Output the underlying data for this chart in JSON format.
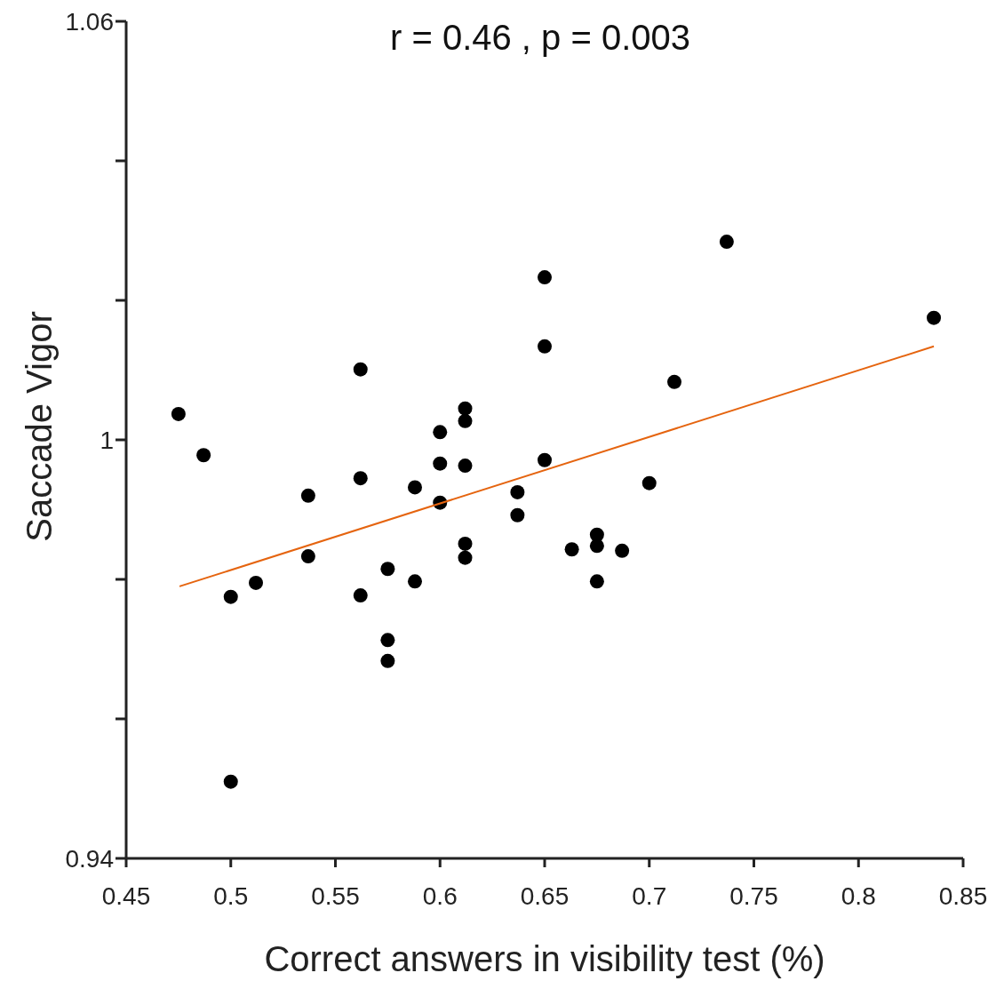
{
  "chart_data": {
    "type": "scatter",
    "title": "r = 0.46 , p = 0.003",
    "xlabel": "Correct answers in visibility test (%)",
    "ylabel": "Saccade Vigor",
    "xlim": [
      0.45,
      0.85
    ],
    "xticks": [
      0.45,
      0.5,
      0.55,
      0.6,
      0.65,
      0.7,
      0.75,
      0.8,
      0.85
    ],
    "ylim": [
      0.94,
      1.06
    ],
    "yticks": [
      0.94,
      {
        "value": 0.96,
        "label": null
      },
      {
        "value": 0.98,
        "label": null
      },
      1,
      {
        "value": 1.02,
        "label": null
      },
      {
        "value": 1.04,
        "label": null
      },
      1.06
    ],
    "marker": "circle",
    "series": [
      {
        "color": "#000000",
        "x": [
          0.475,
          0.487,
          0.5,
          0.5,
          0.512,
          0.537,
          0.537,
          0.562,
          0.562,
          0.562,
          0.575,
          0.575,
          0.575,
          0.588,
          0.588,
          0.6,
          0.6,
          0.6,
          0.612,
          0.612,
          0.612,
          0.612,
          0.612,
          0.637,
          0.637,
          0.65,
          0.65,
          0.65,
          0.663,
          0.675,
          0.675,
          0.675,
          0.687,
          0.7,
          0.712,
          0.737,
          0.836
        ],
        "values": [
          1.0037,
          0.9978,
          0.9775,
          0.951,
          0.9795,
          0.992,
          0.9833,
          1.0101,
          0.9945,
          0.9777,
          0.9815,
          0.9713,
          0.9683,
          0.9932,
          0.9797,
          1.0011,
          0.9966,
          0.991,
          1.0045,
          1.0027,
          0.9963,
          0.9851,
          0.9831,
          0.9925,
          0.9892,
          1.0233,
          1.0134,
          0.9971,
          0.9843,
          0.9864,
          0.9848,
          0.9797,
          0.9841,
          0.9938,
          1.0083,
          1.0284,
          1.0175
        ]
      },
      {
        "type": "line",
        "marker": "none",
        "color": "#e5640f",
        "x": [
          0.4755,
          0.836
        ],
        "values": [
          0.979,
          1.0134
        ]
      }
    ]
  }
}
